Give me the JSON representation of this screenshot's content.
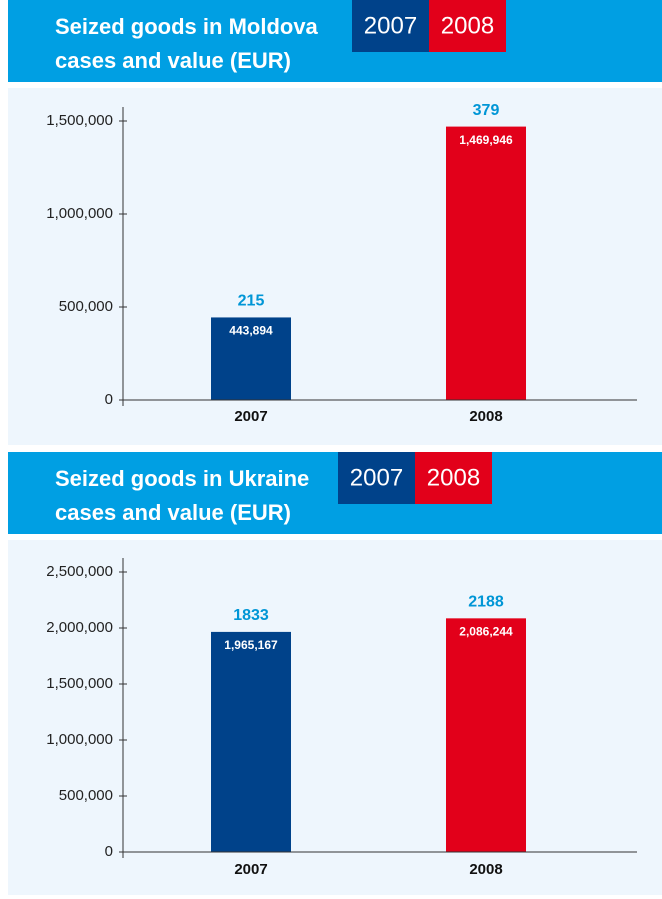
{
  "chart_data": [
    {
      "type": "bar",
      "title": "Seized goods in Moldova",
      "subtitle": "cases and value (EUR)",
      "categories": [
        "2007",
        "2008"
      ],
      "values": [
        443894,
        1469946
      ],
      "value_labels": [
        "443,894",
        "1,469,946"
      ],
      "cases": [
        215,
        379
      ],
      "colors": [
        "#00428a",
        "#e2001a"
      ],
      "ylim": [
        0,
        1500000
      ],
      "yticks": [
        0,
        {
          "value": 500000,
          "label": "500,000"
        },
        {
          "value": 1000000,
          "label": "1,000,000"
        },
        {
          "value": 1500000,
          "label": "1,500,000"
        }
      ]
    },
    {
      "type": "bar",
      "title": "Seized goods in Ukraine",
      "subtitle": "cases and value (EUR)",
      "categories": [
        "2007",
        "2008"
      ],
      "values": [
        1965167,
        2086244
      ],
      "value_labels": [
        "1,965,167",
        "2,086,244"
      ],
      "cases": [
        1833,
        2188
      ],
      "colors": [
        "#00428a",
        "#e2001a"
      ],
      "ylim": [
        0,
        2500000
      ],
      "yticks": [
        0,
        {
          "value": 500000,
          "label": "500,000"
        },
        {
          "value": 1000000,
          "label": "1,000,000"
        },
        {
          "value": 1500000,
          "label": "1,500,000"
        },
        {
          "value": 2000000,
          "label": "2,000,000"
        },
        {
          "value": 2500000,
          "label": "2,500,000"
        }
      ]
    }
  ]
}
